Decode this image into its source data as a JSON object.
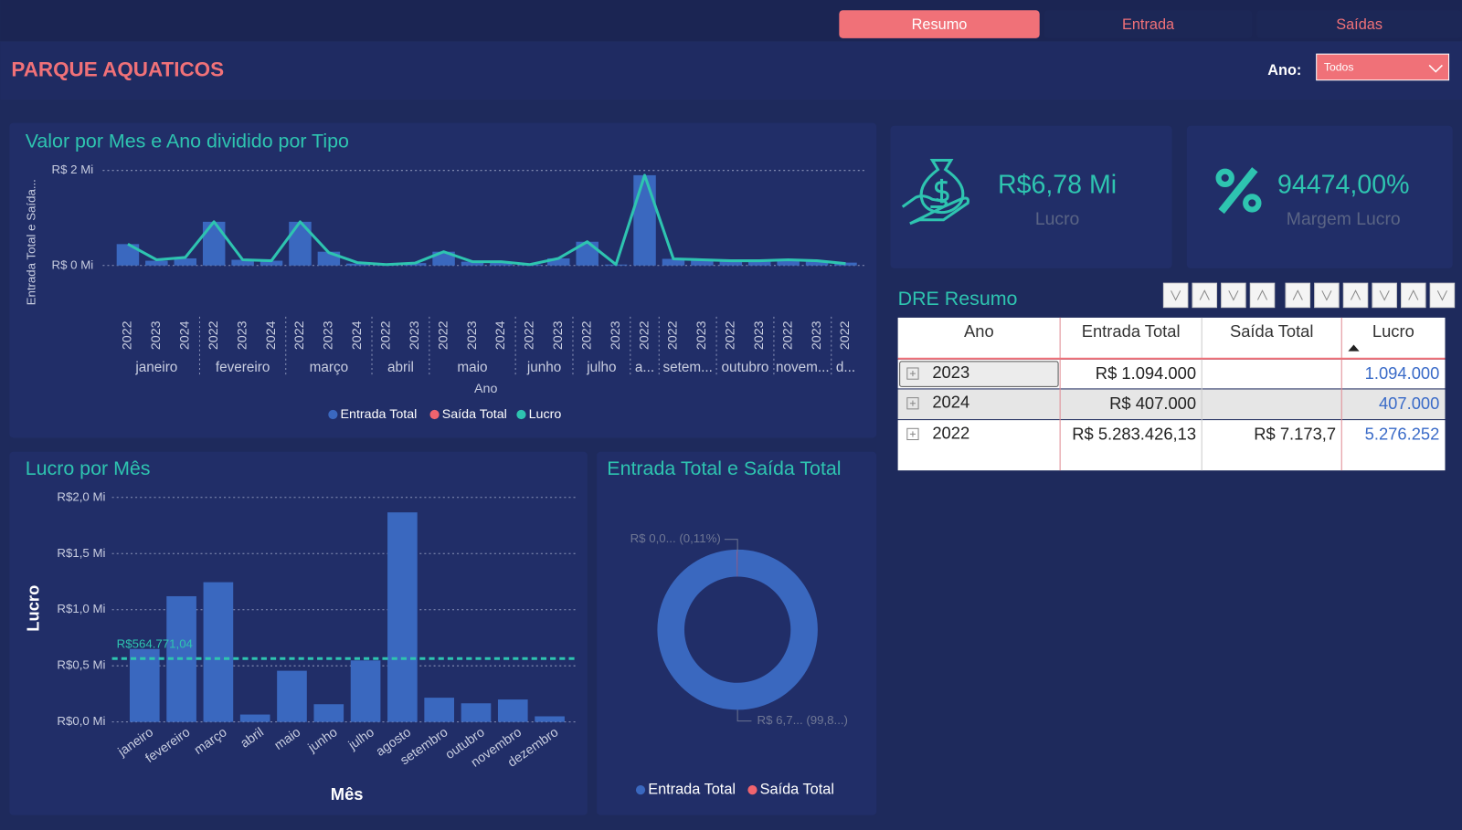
{
  "tabs": [
    "Resumo",
    "Entrada",
    "Saídas"
  ],
  "header": {
    "title": "PARQUE AQUATICOS",
    "filter_label": "Ano:",
    "filter_value": "Todos"
  },
  "kpis": [
    {
      "value": "R$6,78 Mi",
      "label": "Lucro"
    },
    {
      "value": "94474,00%",
      "label": "Margem Lucro"
    }
  ],
  "table": {
    "title": "DRE Resumo",
    "columns": [
      "Ano",
      "Entrada Total",
      "Saída Total",
      "Lucro"
    ],
    "rows": [
      [
        "2023",
        "R$ 1.094.000",
        null,
        "1.094.000"
      ],
      [
        "2024",
        "R$ 407.000",
        null,
        "407.000"
      ],
      [
        "2022",
        "R$ 5.283.426,13",
        "R$ 7.173,7",
        "5.276.252"
      ]
    ]
  },
  "chart_data": [
    {
      "type": "combo",
      "title": "Valor por Mes e Ano dividido por Tipo",
      "y_label": "Entrada Total e Saída...",
      "x_label": "Ano",
      "groups": [
        {
          "label": "janeiro",
          "categories": [
            "2022",
            "2023",
            "2024"
          ]
        },
        {
          "label": "fevereiro",
          "categories": [
            "2022",
            "2023",
            "2024"
          ]
        },
        {
          "label": "março",
          "categories": [
            "2022",
            "2023",
            "2024"
          ]
        },
        {
          "label": "abril",
          "categories": [
            "2022",
            "2023"
          ]
        },
        {
          "label": "maio",
          "categories": [
            "2022",
            "2023",
            "2024"
          ]
        },
        {
          "label": "junho",
          "categories": [
            "2022",
            "2023"
          ]
        },
        {
          "label": "julho",
          "categories": [
            "2022",
            "2023"
          ]
        },
        {
          "label": "a...",
          "categories": [
            "2022"
          ]
        },
        {
          "label": "setem...",
          "categories": [
            "2022",
            "2023"
          ]
        },
        {
          "label": "outubro",
          "categories": [
            "2022",
            "2023"
          ]
        },
        {
          "label": "novem...",
          "categories": [
            "2022",
            "2023"
          ]
        },
        {
          "label": "d...",
          "categories": [
            "2022"
          ]
        }
      ],
      "series": [
        {
          "name": "Entrada Total",
          "type": "bar",
          "color": "#3a68bf",
          "values": [
            0.45,
            0.1,
            0.15,
            0.92,
            0.12,
            0.1,
            0.92,
            0.29,
            0.04,
            0.02,
            0.05,
            0.29,
            0.08,
            0.06,
            0.02,
            0.15,
            0.5,
            0.02,
            1.9,
            0.14,
            0.1,
            0.1,
            0.08,
            0.1,
            0.1,
            0.06
          ]
        },
        {
          "name": "Saída Total",
          "type": "bar",
          "color": "#f0646e",
          "values": [
            0,
            0,
            0,
            0,
            0,
            0,
            0,
            0,
            0,
            0,
            0,
            0,
            0,
            0,
            0,
            0,
            0,
            0,
            0,
            0,
            0,
            0,
            0,
            0,
            0,
            0
          ]
        },
        {
          "name": "Lucro",
          "type": "line",
          "color": "#2ec4b0",
          "values": [
            0.45,
            0.12,
            0.17,
            0.92,
            0.12,
            0.1,
            0.92,
            0.27,
            0.06,
            0.02,
            0.05,
            0.29,
            0.08,
            0.08,
            0.02,
            0.15,
            0.5,
            0.02,
            1.9,
            0.14,
            0.12,
            0.1,
            0.1,
            0.12,
            0.1,
            0.04
          ]
        }
      ],
      "ylim": [
        0,
        2
      ],
      "yticks": [
        {
          "value": 0,
          "label": "R$ 0 Mi"
        },
        {
          "value": 2,
          "label": "R$ 2 Mi"
        }
      ],
      "grid": true
    },
    {
      "type": "bar",
      "title": "Lucro por Mês",
      "y_label": "Lucro",
      "x_label": "Mês",
      "color": "#3a68bf",
      "categories": [
        "janeiro",
        "fevereiro",
        "março",
        "abril",
        "maio",
        "junho",
        "julho",
        "agosto",
        "setembro",
        "outubro",
        "novembro",
        "dezembro"
      ],
      "values": [
        0.65,
        1.12,
        1.245,
        0.066,
        0.456,
        0.158,
        0.548,
        1.867,
        0.216,
        0.166,
        0.2,
        0.05
      ],
      "reference_line": {
        "value": 0.56477104,
        "label": "R$564.771,04",
        "color": "#2ec4b0"
      },
      "ylim": [
        0,
        2
      ],
      "yticks": [
        {
          "value": 0,
          "label": "R$0,0 Mi"
        },
        {
          "value": 0.5,
          "label": "R$0,5 Mi"
        },
        {
          "value": 1,
          "label": "R$1,0 Mi"
        },
        {
          "value": 1.5,
          "label": "R$1,5 Mi"
        },
        {
          "value": 2,
          "label": "R$2,0 Mi"
        }
      ],
      "grid": true
    },
    {
      "type": "donut",
      "title": "Entrada Total e Saída Total",
      "categories": [
        "Entrada Total",
        "Saída Total"
      ],
      "values": [
        99.89,
        0.11
      ],
      "value_labels": [
        "R$ 6,7... (99,8...)",
        "R$ 0,0... (0,11%)"
      ],
      "colors": [
        "#3a68bf",
        "#f0646e"
      ]
    }
  ]
}
